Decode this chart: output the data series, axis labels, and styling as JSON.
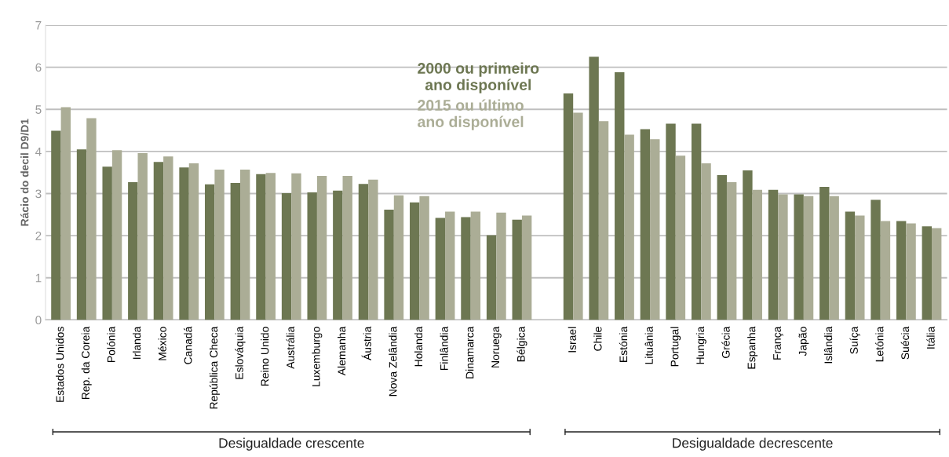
{
  "chart_data": {
    "type": "bar",
    "ylabel": "Rácio do decil D9/D1",
    "categories": [
      "Estados Unidos",
      "Rep. da Coreia",
      "Polónia",
      "Irlanda",
      "México",
      "Canadá",
      "República Checa",
      "Eslováquia",
      "Reino Unido",
      "Austrália",
      "Luxemburgo",
      "Alemanha",
      "Áustria",
      "Nova Zelândia",
      "Holanda",
      "Finlândia",
      "Dinamarca",
      "Noruega",
      "Bélgica",
      null,
      "Israel",
      "Chile",
      "Estónia",
      "Lituânia",
      "Portugal",
      "Hungria",
      "Grécia",
      "Espanha",
      "França",
      "Japão",
      "Islândia",
      "Suíça",
      "Letónia",
      "Suécia",
      "Itália"
    ],
    "series": [
      {
        "name": "2000 ou primeiro ano disponível",
        "color": "#6d7752",
        "values": [
          4.49,
          4.05,
          3.64,
          3.27,
          3.75,
          3.62,
          3.22,
          3.25,
          3.46,
          3.01,
          3.03,
          3.07,
          3.23,
          2.62,
          2.79,
          2.42,
          2.44,
          2.01,
          2.38,
          null,
          5.38,
          6.25,
          5.88,
          4.53,
          4.66,
          4.66,
          3.44,
          3.55,
          3.09,
          2.98,
          3.16,
          2.57,
          2.85,
          2.35,
          2.22
        ]
      },
      {
        "name": "2015 ou último ano disponível",
        "color": "#abad96",
        "values": [
          5.05,
          4.79,
          4.03,
          3.96,
          3.88,
          3.72,
          3.57,
          3.57,
          3.49,
          3.48,
          3.42,
          3.42,
          3.33,
          2.96,
          2.94,
          2.57,
          2.57,
          2.55,
          2.48,
          null,
          4.92,
          4.72,
          4.4,
          4.29,
          3.9,
          3.72,
          3.27,
          3.09,
          2.98,
          2.94,
          2.94,
          2.48,
          2.35,
          2.29,
          2.18
        ]
      }
    ],
    "ylim": [
      0,
      7
    ],
    "yticks": [
      0,
      1,
      2,
      3,
      4,
      5,
      6,
      7
    ],
    "grid": "y",
    "legend": "top",
    "annotations": [
      "Desigualdade crescente",
      "Desigualdade decrescente"
    ]
  }
}
